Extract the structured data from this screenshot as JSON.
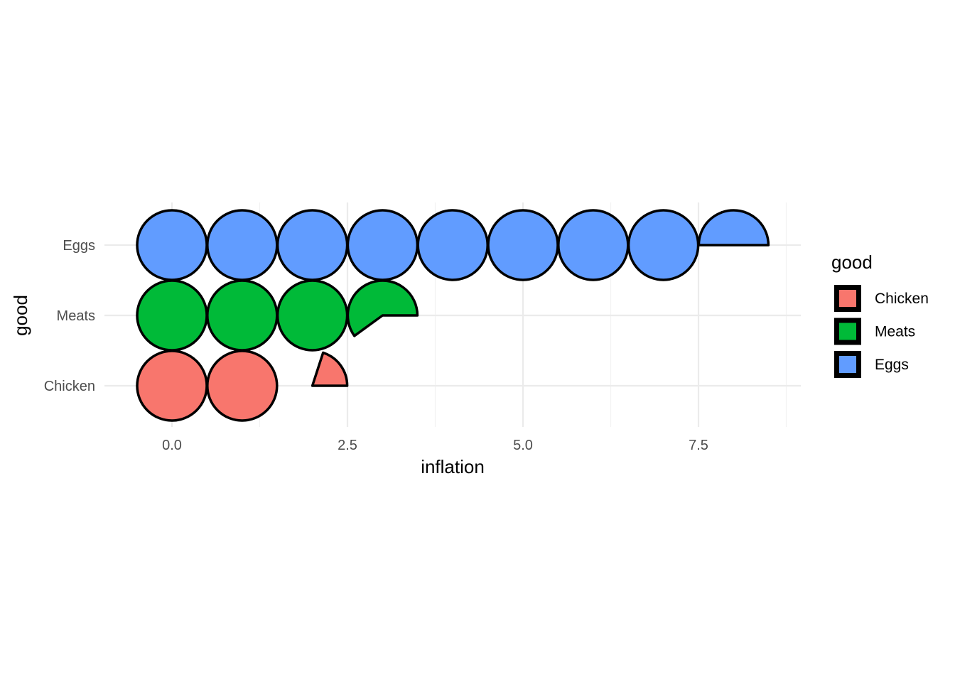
{
  "chart_data": {
    "type": "pictogram",
    "xlabel": "inflation",
    "ylabel": "good",
    "xlim": [
      -0.4,
      8.95
    ],
    "x_ticks": [
      0.0,
      2.5,
      5.0,
      7.5
    ],
    "x_tick_labels": [
      "0.0",
      "2.5",
      "5.0",
      "7.5"
    ],
    "categories": [
      "Chicken",
      "Meats",
      "Eggs"
    ],
    "series": [
      {
        "name": "Chicken",
        "value": 2.2,
        "color": "#F8766D"
      },
      {
        "name": "Meats",
        "value": 3.6,
        "color": "#00BA38"
      },
      {
        "name": "Eggs",
        "value": 8.5,
        "color": "#619CFF"
      }
    ],
    "glyph": "circle",
    "units_per_glyph": 1,
    "grid": true,
    "legend": {
      "title": "good",
      "position": "right",
      "items": [
        "Chicken",
        "Meats",
        "Eggs"
      ]
    }
  }
}
